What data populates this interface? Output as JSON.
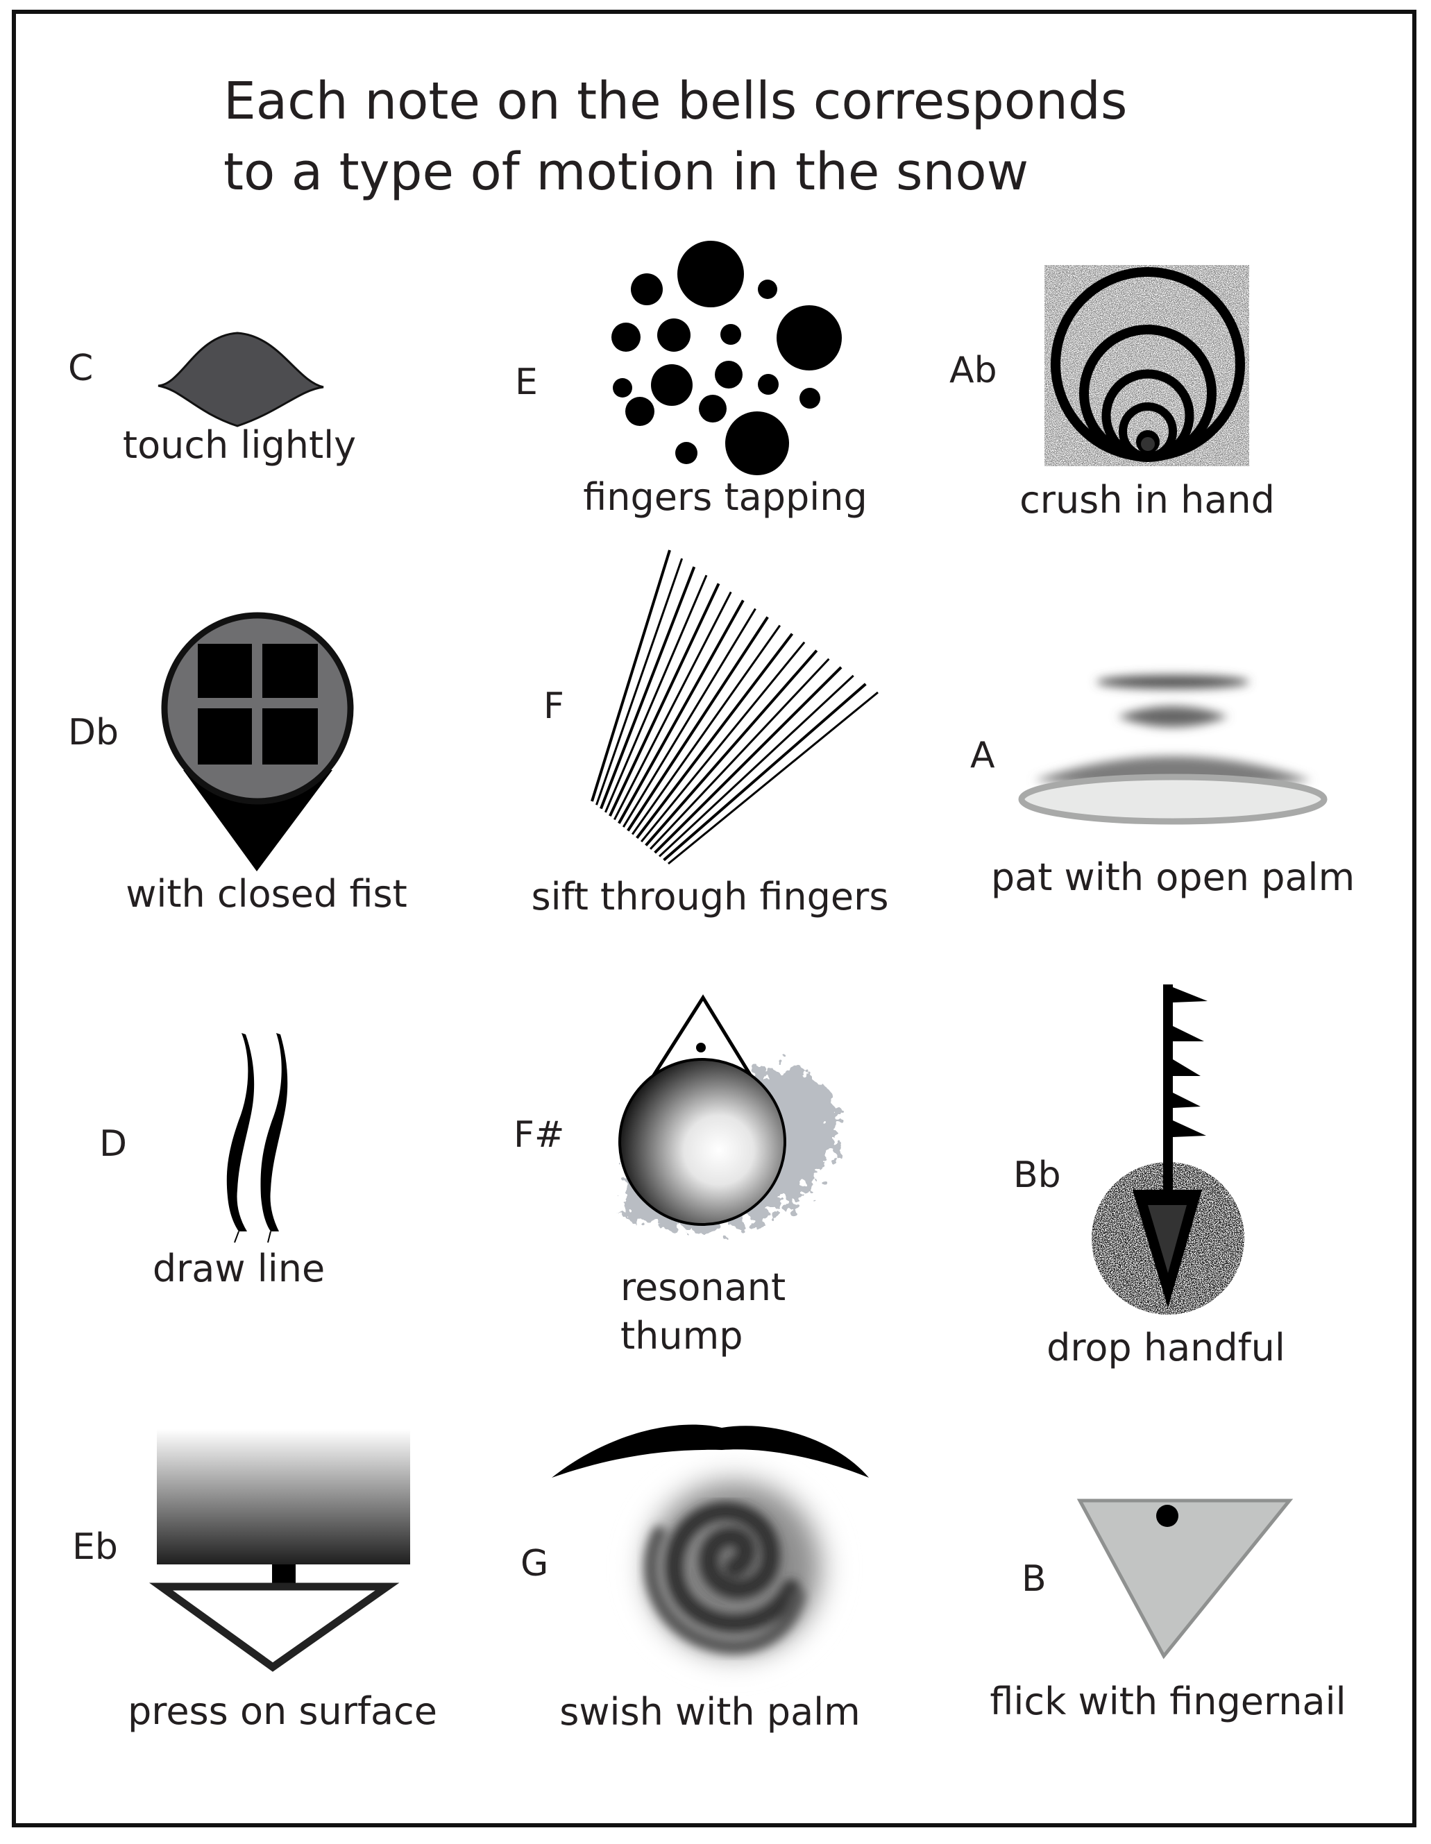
{
  "title": {
    "line1": "Each note on the bells corresponds",
    "line2": "to a type of motion in the snow"
  },
  "motions": [
    {
      "note": "C",
      "caption": "touch lightly"
    },
    {
      "note": "E",
      "caption": "fingers tapping"
    },
    {
      "note": "Ab",
      "caption": "crush in hand"
    },
    {
      "note": "Db",
      "caption": "with closed fist"
    },
    {
      "note": "F",
      "caption": "sift through fingers"
    },
    {
      "note": "A",
      "caption": "pat with open palm"
    },
    {
      "note": "D",
      "caption": "draw line"
    },
    {
      "note": "F#",
      "caption_line1": "resonant",
      "caption_line2": "thump"
    },
    {
      "note": "Bb",
      "caption": "drop handful"
    },
    {
      "note": "Eb",
      "caption": "press on surface"
    },
    {
      "note": "G",
      "caption": "swish with palm"
    },
    {
      "note": "B",
      "caption": "flick with fingernail"
    }
  ],
  "colors": {
    "ink": "#231f20",
    "dark_gray_fill": "#4d4d50",
    "mid_gray_fill": "#7a7a7c",
    "light_gray_fill": "#c2c4c3",
    "snow_spatter": "#b9bdc3"
  },
  "icons": [
    "arch-icon",
    "dots-cluster-icon",
    "concentric-rings-icon",
    "fist-pin-icon",
    "fan-lines-icon",
    "palm-disc-icon",
    "wavy-lines-icon",
    "bell-sphere-icon",
    "flagged-arrow-icon",
    "press-block-icon",
    "swirl-icon",
    "triangle-dot-icon"
  ]
}
